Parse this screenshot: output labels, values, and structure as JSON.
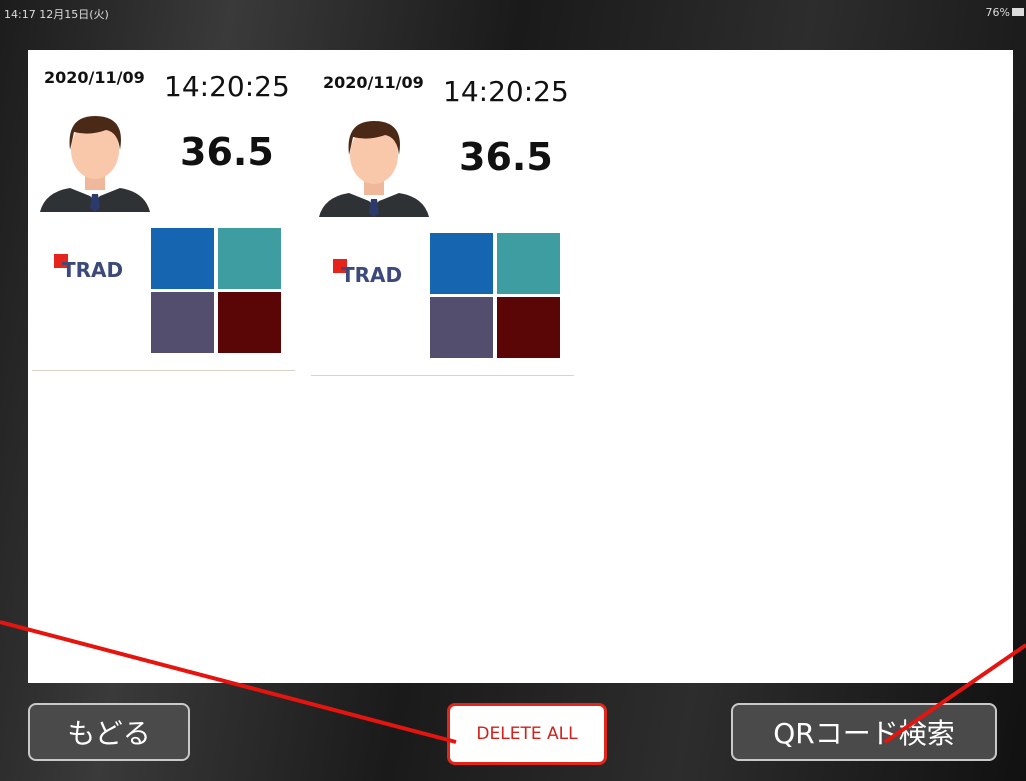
{
  "status_bar": {
    "time_date": "14:17  12月15日(火)",
    "battery": "76%"
  },
  "cards": [
    {
      "date": "2020/11/09",
      "time": "14:20:25",
      "temperature": "36.5",
      "logo": "TRAD"
    },
    {
      "date": "2020/11/09",
      "time": "14:20:25",
      "temperature": "36.5",
      "logo": "TRAD"
    }
  ],
  "buttons": {
    "back": "もどる",
    "delete_all": "DELETE ALL",
    "qr_search": "QRコード検索"
  }
}
